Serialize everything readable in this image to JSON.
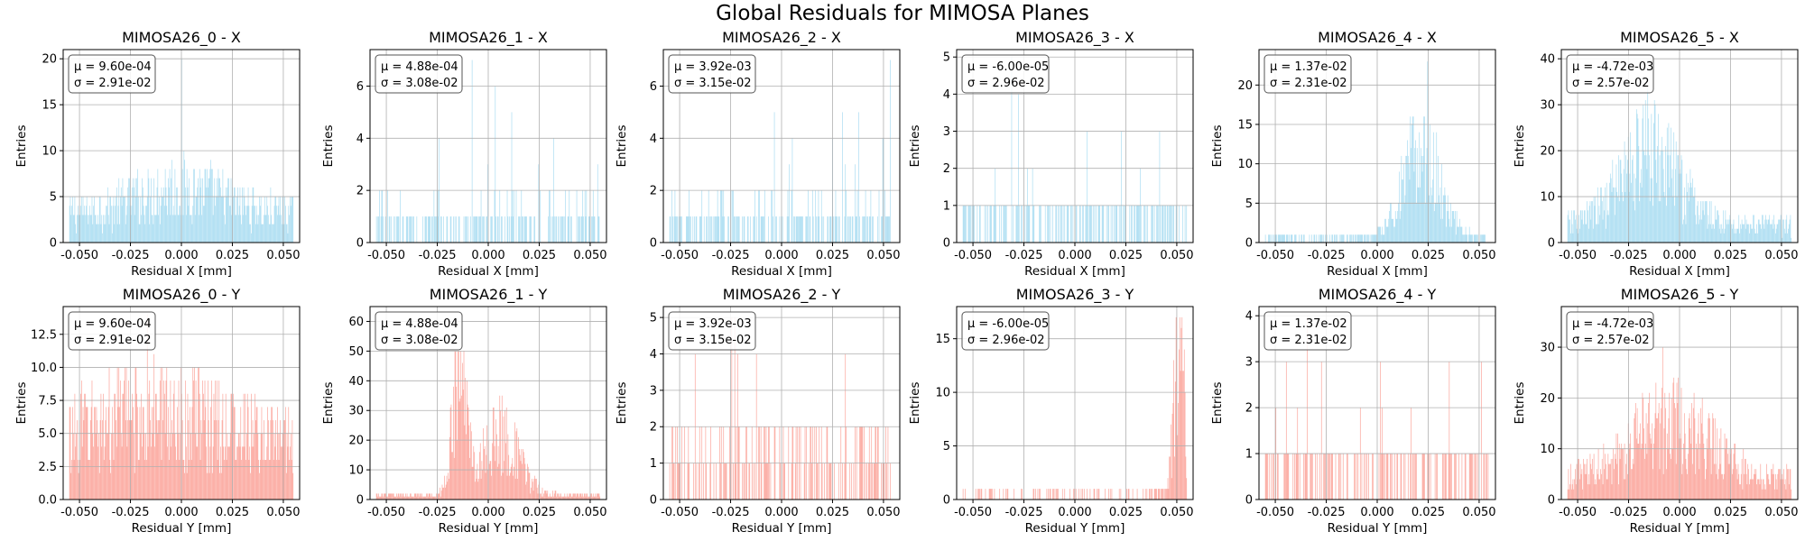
{
  "figure_title": "Global Residuals for MIMOSA Planes",
  "colors": {
    "x_hist": "#87ceeb",
    "y_hist": "#fa8072",
    "grid": "#b0b0b0"
  },
  "chart_data": [
    {
      "type": "bar",
      "title": "MIMOSA26_0 - X",
      "xlabel": "Residual X [mm]",
      "ylabel": "Entries",
      "xlim": [
        -0.058,
        0.058
      ],
      "ylim": [
        0,
        21
      ],
      "xticks": [
        "-0.050",
        "-0.025",
        "0.000",
        "0.025",
        "0.050"
      ],
      "yticks": [
        "0",
        "5",
        "10",
        "15",
        "20"
      ],
      "ytick_values": [
        0,
        5,
        10,
        15,
        20
      ],
      "stats": {
        "mu": "9.60e-04",
        "sigma": "2.91e-02"
      },
      "x_range": [
        -0.055,
        0.055
      ],
      "bins": 300,
      "shape": {
        "kind": "flat",
        "base": 3.2,
        "peaks": [
          {
            "c": 0.0,
            "w": 0.02,
            "a": 2.8
          }
        ],
        "max": 20
      },
      "grid": true,
      "legend": "top-left"
    },
    {
      "type": "bar",
      "title": "MIMOSA26_1 - X",
      "xlabel": "Residual X [mm]",
      "ylabel": "Entries",
      "xlim": [
        -0.058,
        0.058
      ],
      "ylim": [
        0,
        7.4
      ],
      "xticks": [
        "-0.050",
        "-0.025",
        "0.000",
        "0.025",
        "0.050"
      ],
      "yticks": [
        "0",
        "2",
        "4",
        "6"
      ],
      "ytick_values": [
        0,
        2,
        4,
        6
      ],
      "stats": {
        "mu": "4.88e-04",
        "sigma": "3.08e-02"
      },
      "x_range": [
        -0.055,
        0.055
      ],
      "bins": 300,
      "shape": {
        "kind": "sparse",
        "base": 0.9,
        "peaks": [],
        "max": 7
      },
      "grid": true,
      "legend": "top-left"
    },
    {
      "type": "bar",
      "title": "MIMOSA26_2 - X",
      "xlabel": "Residual X [mm]",
      "ylabel": "Entries",
      "xlim": [
        -0.058,
        0.058
      ],
      "ylim": [
        0,
        7.4
      ],
      "xticks": [
        "-0.050",
        "-0.025",
        "0.000",
        "0.025",
        "0.050"
      ],
      "yticks": [
        "0",
        "2",
        "4",
        "6"
      ],
      "ytick_values": [
        0,
        2,
        4,
        6
      ],
      "stats": {
        "mu": "3.92e-03",
        "sigma": "3.15e-02"
      },
      "x_range": [
        -0.055,
        0.055
      ],
      "bins": 300,
      "shape": {
        "kind": "sparse",
        "base": 0.95,
        "peaks": [],
        "max": 7
      },
      "grid": true,
      "legend": "top-left"
    },
    {
      "type": "bar",
      "title": "MIMOSA26_3 - X",
      "xlabel": "Residual X [mm]",
      "ylabel": "Entries",
      "xlim": [
        -0.058,
        0.058
      ],
      "ylim": [
        0,
        5.2
      ],
      "xticks": [
        "-0.050",
        "-0.025",
        "0.000",
        "0.025",
        "0.050"
      ],
      "yticks": [
        "0",
        "1",
        "2",
        "3",
        "4",
        "5"
      ],
      "ytick_values": [
        0,
        1,
        2,
        3,
        4,
        5
      ],
      "stats": {
        "mu": "-6.00e-05",
        "sigma": "2.96e-02"
      },
      "x_range": [
        -0.055,
        0.055
      ],
      "bins": 300,
      "shape": {
        "kind": "sparse",
        "base": 0.7,
        "peaks": [],
        "max": 5
      },
      "grid": true,
      "legend": "top-left"
    },
    {
      "type": "bar",
      "title": "MIMOSA26_4 - X",
      "xlabel": "Residual X [mm]",
      "ylabel": "Entries",
      "xlim": [
        -0.058,
        0.058
      ],
      "ylim": [
        0,
        24.5
      ],
      "xticks": [
        "-0.050",
        "-0.025",
        "0.000",
        "0.025",
        "0.050"
      ],
      "yticks": [
        "0",
        "5",
        "10",
        "15",
        "20"
      ],
      "ytick_values": [
        0,
        5,
        10,
        15,
        20
      ],
      "stats": {
        "mu": "1.37e-02",
        "sigma": "2.31e-02"
      },
      "x_range": [
        -0.055,
        0.055
      ],
      "bins": 300,
      "shape": {
        "kind": "peaked",
        "base": 0.6,
        "peaks": [
          {
            "c": 0.022,
            "w": 0.009,
            "a": 11
          }
        ],
        "max": 23
      },
      "grid": true,
      "legend": "top-left"
    },
    {
      "type": "bar",
      "title": "MIMOSA26_5 - X",
      "xlabel": "Residual X [mm]",
      "ylabel": "Entries",
      "xlim": [
        -0.058,
        0.058
      ],
      "ylim": [
        0,
        42
      ],
      "xticks": [
        "-0.050",
        "-0.025",
        "0.000",
        "0.025",
        "0.050"
      ],
      "yticks": [
        "0",
        "10",
        "20",
        "30",
        "40"
      ],
      "ytick_values": [
        0,
        10,
        20,
        30,
        40
      ],
      "stats": {
        "mu": "-4.72e-03",
        "sigma": "2.57e-02"
      },
      "x_range": [
        -0.055,
        0.055
      ],
      "bins": 300,
      "shape": {
        "kind": "peaked",
        "base": 4,
        "peaks": [
          {
            "c": -0.015,
            "w": 0.014,
            "a": 16
          }
        ],
        "max": 34
      },
      "grid": true,
      "legend": "top-left"
    },
    {
      "type": "bar",
      "title": "MIMOSA26_0 - Y",
      "xlabel": "Residual Y [mm]",
      "ylabel": "Entries",
      "xlim": [
        -0.058,
        0.058
      ],
      "ylim": [
        0,
        14.6
      ],
      "xticks": [
        "-0.050",
        "-0.025",
        "0.000",
        "0.025",
        "0.050"
      ],
      "yticks": [
        "0.0",
        "2.5",
        "5.0",
        "7.5",
        "10.0",
        "12.5"
      ],
      "ytick_values": [
        0,
        2.5,
        5,
        7.5,
        10,
        12.5
      ],
      "stats": {
        "mu": "9.60e-04",
        "sigma": "2.91e-02"
      },
      "x_range": [
        -0.055,
        0.055
      ],
      "bins": 300,
      "shape": {
        "kind": "flat",
        "base": 4.2,
        "peaks": [
          {
            "c": -0.01,
            "w": 0.03,
            "a": 2.5
          }
        ],
        "max": 14
      },
      "grid": true,
      "legend": "top-left"
    },
    {
      "type": "bar",
      "title": "MIMOSA26_1 - Y",
      "xlabel": "Residual Y [mm]",
      "ylabel": "Entries",
      "xlim": [
        -0.058,
        0.058
      ],
      "ylim": [
        0,
        65
      ],
      "xticks": [
        "-0.050",
        "-0.025",
        "0.000",
        "0.025",
        "0.050"
      ],
      "yticks": [
        "0",
        "10",
        "20",
        "30",
        "40",
        "50",
        "60"
      ],
      "ytick_values": [
        0,
        10,
        20,
        30,
        40,
        50,
        60
      ],
      "stats": {
        "mu": "4.88e-04",
        "sigma": "3.08e-02"
      },
      "x_range": [
        -0.055,
        0.055
      ],
      "bins": 300,
      "shape": {
        "kind": "peaked",
        "base": 1.5,
        "peaks": [
          {
            "c": -0.014,
            "w": 0.0035,
            "a": 40
          },
          {
            "c": 0.006,
            "w": 0.009,
            "a": 20
          }
        ],
        "max": 50
      },
      "grid": true,
      "legend": "top-left"
    },
    {
      "type": "bar",
      "title": "MIMOSA26_2 - Y",
      "xlabel": "Residual Y [mm]",
      "ylabel": "Entries",
      "xlim": [
        -0.058,
        0.058
      ],
      "ylim": [
        0,
        5.3
      ],
      "xticks": [
        "-0.050",
        "-0.025",
        "0.000",
        "0.025",
        "0.050"
      ],
      "yticks": [
        "0",
        "1",
        "2",
        "3",
        "4",
        "5"
      ],
      "ytick_values": [
        0,
        1,
        2,
        3,
        4,
        5
      ],
      "stats": {
        "mu": "3.92e-03",
        "sigma": "3.15e-02"
      },
      "x_range": [
        -0.055,
        0.055
      ],
      "bins": 300,
      "shape": {
        "kind": "sparse",
        "base": 1.2,
        "peaks": [],
        "max": 5
      },
      "grid": true,
      "legend": "top-left"
    },
    {
      "type": "bar",
      "title": "MIMOSA26_3 - Y",
      "xlabel": "Residual Y [mm]",
      "ylabel": "Entries",
      "xlim": [
        -0.058,
        0.058
      ],
      "ylim": [
        0,
        18
      ],
      "xticks": [
        "-0.050",
        "-0.025",
        "0.000",
        "0.025",
        "0.050"
      ],
      "yticks": [
        "0",
        "5",
        "10",
        "15"
      ],
      "ytick_values": [
        0,
        5,
        10,
        15
      ],
      "stats": {
        "mu": "-6.00e-05",
        "sigma": "2.96e-02"
      },
      "x_range": [
        -0.055,
        0.055
      ],
      "bins": 300,
      "shape": {
        "kind": "edge",
        "base": 0.4,
        "peaks": [
          {
            "c": 0.051,
            "w": 0.0025,
            "a": 14
          }
        ],
        "max": 17
      },
      "grid": true,
      "legend": "top-left"
    },
    {
      "type": "bar",
      "title": "MIMOSA26_4 - Y",
      "xlabel": "Residual Y [mm]",
      "ylabel": "Entries",
      "xlim": [
        -0.058,
        0.058
      ],
      "ylim": [
        0,
        4.2
      ],
      "xticks": [
        "-0.050",
        "-0.025",
        "0.000",
        "0.025",
        "0.050"
      ],
      "yticks": [
        "0",
        "1",
        "2",
        "3",
        "4"
      ],
      "ytick_values": [
        0,
        1,
        2,
        3,
        4
      ],
      "stats": {
        "mu": "1.37e-02",
        "sigma": "2.31e-02"
      },
      "x_range": [
        -0.055,
        0.055
      ],
      "bins": 300,
      "shape": {
        "kind": "sparse",
        "base": 0.55,
        "peaks": [],
        "max": 4
      },
      "grid": true,
      "legend": "top-left"
    },
    {
      "type": "bar",
      "title": "MIMOSA26_5 - Y",
      "xlabel": "Residual Y [mm]",
      "ylabel": "Entries",
      "xlim": [
        -0.058,
        0.058
      ],
      "ylim": [
        0,
        38
      ],
      "xticks": [
        "-0.050",
        "-0.025",
        "0.000",
        "0.025",
        "0.050"
      ],
      "yticks": [
        "0",
        "10",
        "20",
        "30"
      ],
      "ytick_values": [
        0,
        10,
        20,
        30
      ],
      "stats": {
        "mu": "-4.72e-03",
        "sigma": "2.57e-02"
      },
      "x_range": [
        -0.055,
        0.055
      ],
      "bins": 300,
      "shape": {
        "kind": "peaked",
        "base": 4,
        "peaks": [
          {
            "c": -0.005,
            "w": 0.02,
            "a": 11
          }
        ],
        "max": 30
      },
      "grid": true,
      "legend": "top-left"
    }
  ]
}
